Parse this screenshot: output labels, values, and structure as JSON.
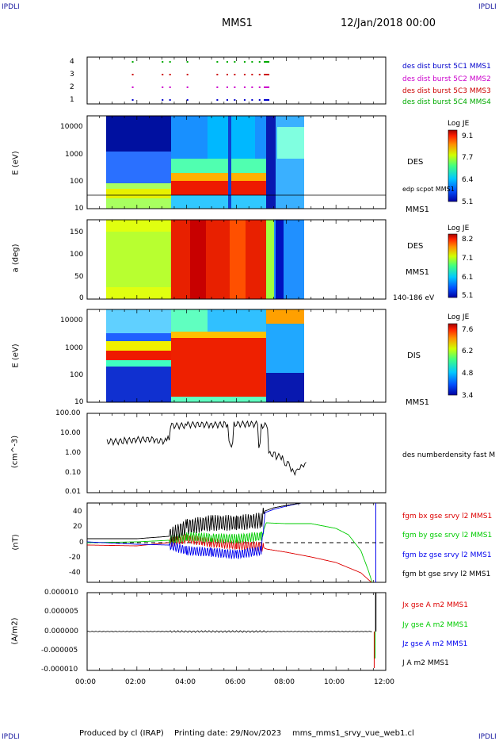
{
  "header": {
    "corner_left": "IPDLI",
    "corner_right": "IPDLI",
    "mission": "MMS1",
    "date": "12/Jan/2018 00:00"
  },
  "footer": {
    "produced_by": "Produced by cl (IRAP)",
    "printing_date": "Printing date: 29/Nov/2023",
    "filename": "mms_mms1_srvy_vue_web1.cl",
    "corner_left": "IPDLI",
    "corner_right": "IPDLI"
  },
  "colors": {
    "c1": "#0000cc",
    "c2": "#cc00cc",
    "c3": "#cc0000",
    "c4": "#00aa00",
    "bx": "#dd0000",
    "by": "#00cc00",
    "bz": "#0000ee",
    "bt": "#000000"
  },
  "chart_data": [
    {
      "type": "scatter",
      "panel": "burst-availability",
      "yticks": [
        "1",
        "2",
        "3",
        "4"
      ],
      "ylim": [
        0.5,
        4.5
      ],
      "legend": [
        {
          "name": "des dist burst 5C1 MMS1",
          "color": "#0000cc"
        },
        {
          "name": "des dist burst 5C2 MMS2",
          "color": "#cc00cc"
        },
        {
          "name": "des dist burst 5C3 MMS3",
          "color": "#cc0000"
        },
        {
          "name": "des dist burst 5C4 MMS4",
          "color": "#00aa00"
        }
      ],
      "burst_times_hours": [
        1.8,
        3.0,
        3.3,
        4.0,
        5.2,
        5.6,
        5.9,
        6.3,
        6.6,
        6.9,
        7.1
      ]
    },
    {
      "type": "heatmap",
      "panel": "des-energy",
      "ylabel": "E (eV)",
      "yscale": "log",
      "ylim": [
        10,
        30000
      ],
      "yticks": [
        "10",
        "100",
        "1000",
        "10000"
      ],
      "labels": [
        "DES",
        "edp scpot MMS1",
        "MMS1"
      ],
      "colorbar": {
        "title": "Log JE",
        "ticks": [
          "9.1",
          "7.7",
          "6.4",
          "5.1"
        ],
        "range": [
          5.1,
          9.1
        ]
      },
      "data_time_range_hours": [
        0.75,
        8.75
      ]
    },
    {
      "type": "heatmap",
      "panel": "des-pitch",
      "ylabel": "a (deg)",
      "ylim": [
        0,
        180
      ],
      "yticks": [
        "0",
        "50",
        "100",
        "150"
      ],
      "labels": [
        "DES",
        "MMS1",
        "140-186 eV"
      ],
      "colorbar": {
        "title": "Log JE",
        "ticks": [
          "8.2",
          "7.1",
          "6.1",
          "5.1"
        ],
        "range": [
          5.1,
          8.2
        ]
      },
      "data_time_range_hours": [
        0.75,
        8.75
      ]
    },
    {
      "type": "heatmap",
      "panel": "dis-energy",
      "ylabel": "E (eV)",
      "yscale": "log",
      "ylim": [
        10,
        30000
      ],
      "yticks": [
        "10",
        "100",
        "1000",
        "10000"
      ],
      "labels": [
        "DIS",
        "MMS1"
      ],
      "colorbar": {
        "title": "Log JE",
        "ticks": [
          "7.6",
          "6.2",
          "4.8",
          "3.4"
        ],
        "range": [
          3.4,
          7.6
        ]
      },
      "data_time_range_hours": [
        0.75,
        8.75
      ]
    },
    {
      "type": "line",
      "panel": "density",
      "ylabel": "(cm^-3)",
      "yscale": "log",
      "ylim": [
        0.01,
        100
      ],
      "yticks": [
        "0.01",
        "0.10",
        "1.00",
        "10.00",
        "100.00"
      ],
      "series": [
        {
          "name": "des numberdensity fast M",
          "color": "#000000",
          "x": [
            0.8,
            1.5,
            2.0,
            2.8,
            3.25,
            3.35,
            4.0,
            5.0,
            5.5,
            5.7,
            5.9,
            6.5,
            6.9,
            7.0,
            7.1,
            7.3,
            7.6,
            7.9,
            8.2,
            8.5,
            8.7,
            8.8
          ],
          "values": [
            4.0,
            4.5,
            5.0,
            4.2,
            5.5,
            25,
            28,
            28,
            30,
            3.0,
            30,
            30,
            2.5,
            25,
            25,
            0.9,
            0.7,
            0.3,
            0.12,
            0.2,
            0.3,
            0.25
          ]
        }
      ]
    },
    {
      "type": "line",
      "panel": "magnetic-field",
      "ylabel": "(nT)",
      "ylim": [
        -50,
        50
      ],
      "yticks": [
        "-40",
        "-20",
        "0",
        "20",
        "40"
      ],
      "series": [
        {
          "name": "fgm bx gse srvy l2 MMS1",
          "color": "#dd0000",
          "x": [
            0,
            2,
            3.3,
            4,
            5,
            6,
            7,
            7.2,
            8,
            9,
            10,
            11,
            11.6
          ],
          "values": [
            -3,
            -4,
            0,
            5,
            0,
            -3,
            -5,
            -8,
            -12,
            -18,
            -25,
            -38,
            -55
          ]
        },
        {
          "name": "fgm by gse srvy l2 MMS1",
          "color": "#00cc00",
          "x": [
            0,
            2,
            3.3,
            4,
            5,
            6,
            7,
            7.2,
            8,
            9,
            10,
            10.5,
            11,
            11.3,
            11.5
          ],
          "values": [
            0,
            1,
            3,
            8,
            6,
            5,
            8,
            25,
            24,
            24,
            18,
            10,
            -10,
            -35,
            -55
          ]
        },
        {
          "name": "fgm bz gse srvy l2 MMS1",
          "color": "#0000ee",
          "x": [
            0,
            2,
            3.3,
            4,
            5,
            6,
            7,
            7.15,
            7.5,
            8.0,
            8.6
          ],
          "values": [
            1,
            -2,
            -3,
            -10,
            -12,
            -15,
            -10,
            38,
            42,
            46,
            50
          ]
        },
        {
          "name": "fgm bt gse srvy l2 MMS1",
          "color": "#000000",
          "x": [
            0,
            2,
            3.3,
            4,
            5,
            6,
            7,
            7.15,
            7.5,
            8.0,
            8.6
          ],
          "values": [
            5,
            5,
            8,
            20,
            25,
            25,
            28,
            40,
            44,
            47,
            50
          ]
        }
      ]
    },
    {
      "type": "line",
      "panel": "current-density",
      "ylabel": "(A/m2)",
      "ylim": [
        -1e-05,
        1e-05
      ],
      "yticks": [
        "-0.000010",
        "-0.000005",
        "0.000000",
        "0.000005",
        "0.000010"
      ],
      "xticks": [
        "00:00",
        "02:00",
        "04:00",
        "06:00",
        "08:00",
        "10:00",
        "12:00"
      ],
      "series": [
        {
          "name": "Jx gse A m2 MMS1",
          "color": "#dd0000"
        },
        {
          "name": "Jy gse A m2 MMS1",
          "color": "#00cc00"
        },
        {
          "name": "Jz gse A m2 MMS1",
          "color": "#0000ee"
        },
        {
          "name": "J A m2 MMS1",
          "color": "#000000"
        }
      ],
      "spike_time_hours": 11.6
    }
  ]
}
